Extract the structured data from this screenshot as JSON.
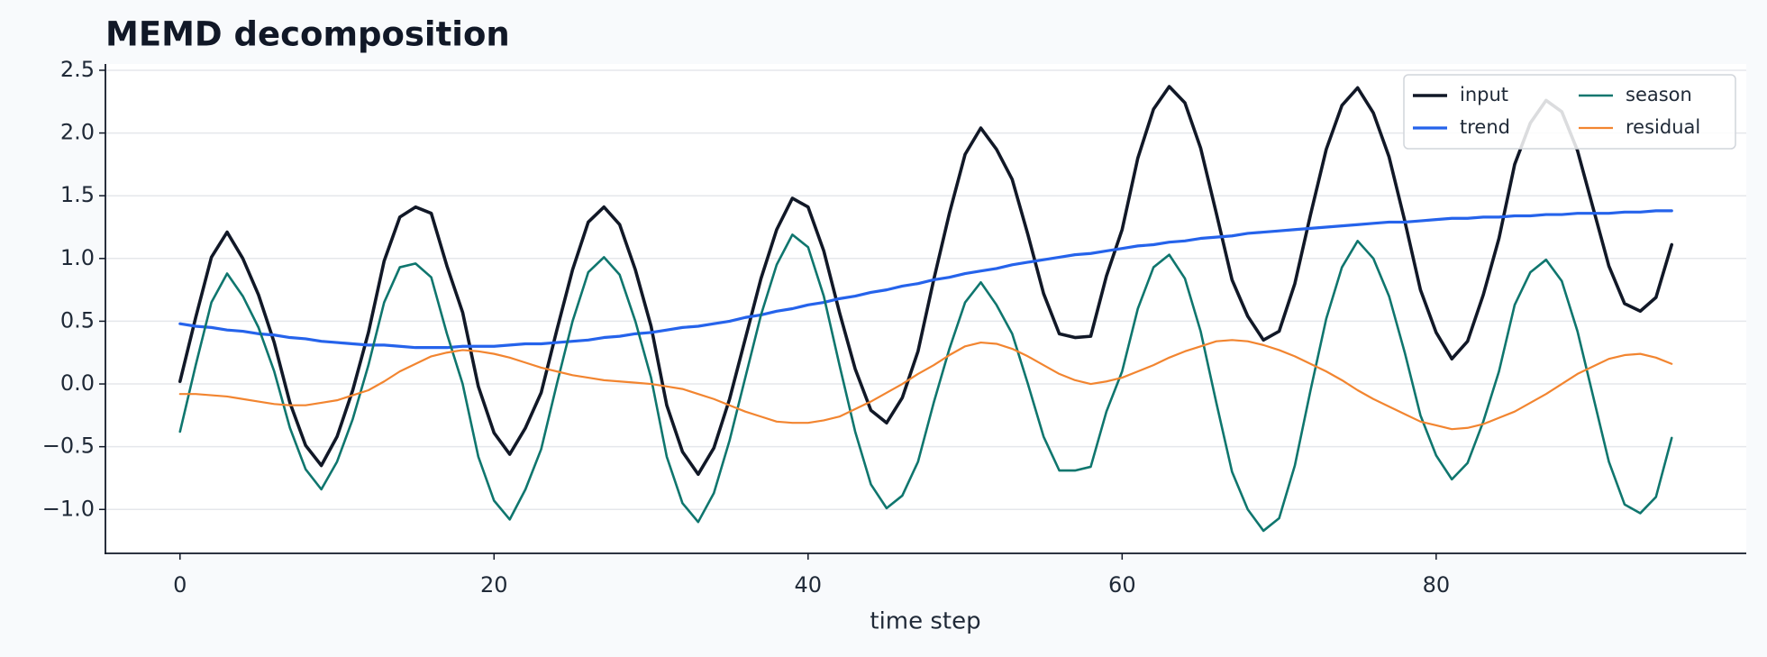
{
  "chart_data": {
    "type": "line",
    "title": "MEMD decomposition",
    "xlabel": "time step",
    "x": [
      0,
      1,
      2,
      3,
      4,
      5,
      6,
      7,
      8,
      9,
      10,
      11,
      12,
      13,
      14,
      15,
      16,
      17,
      18,
      19,
      20,
      21,
      22,
      23,
      24,
      25,
      26,
      27,
      28,
      29,
      30,
      31,
      32,
      33,
      34,
      35,
      36,
      37,
      38,
      39,
      40,
      41,
      42,
      43,
      44,
      45,
      46,
      47,
      48,
      49,
      50,
      51,
      52,
      53,
      54,
      55,
      56,
      57,
      58,
      59,
      60,
      61,
      62,
      63,
      64,
      65,
      66,
      67,
      68,
      69,
      70,
      71,
      72,
      73,
      74,
      75,
      76,
      77,
      78,
      79,
      80,
      81,
      82,
      83,
      84,
      85,
      86,
      87,
      88,
      89,
      90,
      91,
      92,
      93,
      94,
      95
    ],
    "series": [
      {
        "name": "input",
        "color": "#111827",
        "width": 3.6,
        "values": [
          0.02,
          0.53,
          1.01,
          1.21,
          1.0,
          0.71,
          0.33,
          -0.15,
          -0.49,
          -0.65,
          -0.42,
          -0.05,
          0.41,
          0.98,
          1.33,
          1.41,
          1.36,
          0.94,
          0.57,
          -0.02,
          -0.39,
          -0.56,
          -0.35,
          -0.07,
          0.43,
          0.91,
          1.29,
          1.41,
          1.27,
          0.91,
          0.46,
          -0.17,
          -0.54,
          -0.72,
          -0.51,
          -0.12,
          0.36,
          0.84,
          1.23,
          1.48,
          1.41,
          1.06,
          0.57,
          0.12,
          -0.21,
          -0.31,
          -0.11,
          0.26,
          0.83,
          1.36,
          1.83,
          2.04,
          1.87,
          1.63,
          1.19,
          0.72,
          0.4,
          0.37,
          0.38,
          0.86,
          1.23,
          1.8,
          2.19,
          2.37,
          2.24,
          1.88,
          1.36,
          0.83,
          0.54,
          0.35,
          0.42,
          0.8,
          1.35,
          1.87,
          2.22,
          2.36,
          2.16,
          1.81,
          1.3,
          0.75,
          0.41,
          0.2,
          0.34,
          0.71,
          1.16,
          1.75,
          2.08,
          2.26,
          2.17,
          1.86,
          1.4,
          0.94,
          0.64,
          0.58,
          0.69,
          1.11
        ]
      },
      {
        "name": "trend",
        "color": "#2563eb",
        "width": 3.2,
        "values": [
          0.48,
          0.46,
          0.45,
          0.43,
          0.42,
          0.4,
          0.39,
          0.37,
          0.36,
          0.34,
          0.33,
          0.32,
          0.31,
          0.31,
          0.3,
          0.29,
          0.29,
          0.29,
          0.3,
          0.3,
          0.3,
          0.31,
          0.32,
          0.32,
          0.33,
          0.34,
          0.35,
          0.37,
          0.38,
          0.4,
          0.41,
          0.43,
          0.45,
          0.46,
          0.48,
          0.5,
          0.53,
          0.55,
          0.58,
          0.6,
          0.63,
          0.65,
          0.68,
          0.7,
          0.73,
          0.75,
          0.78,
          0.8,
          0.83,
          0.85,
          0.88,
          0.9,
          0.92,
          0.95,
          0.97,
          0.99,
          1.01,
          1.03,
          1.04,
          1.06,
          1.08,
          1.1,
          1.11,
          1.13,
          1.14,
          1.16,
          1.17,
          1.18,
          1.2,
          1.21,
          1.22,
          1.23,
          1.24,
          1.25,
          1.26,
          1.27,
          1.28,
          1.29,
          1.29,
          1.3,
          1.31,
          1.32,
          1.32,
          1.33,
          1.33,
          1.34,
          1.34,
          1.35,
          1.35,
          1.36,
          1.36,
          1.36,
          1.37,
          1.37,
          1.38,
          1.38
        ]
      },
      {
        "name": "season",
        "color": "#0f766e",
        "width": 2.6,
        "values": [
          -0.38,
          0.15,
          0.65,
          0.88,
          0.7,
          0.45,
          0.1,
          -0.35,
          -0.68,
          -0.84,
          -0.62,
          -0.28,
          0.15,
          0.65,
          0.93,
          0.96,
          0.85,
          0.4,
          0,
          -0.58,
          -0.93,
          -1.08,
          -0.84,
          -0.52,
          0,
          0.5,
          0.89,
          1.01,
          0.87,
          0.5,
          0.05,
          -0.58,
          -0.95,
          -1.1,
          -0.87,
          -0.45,
          0.05,
          0.55,
          0.95,
          1.19,
          1.09,
          0.7,
          0.15,
          -0.38,
          -0.8,
          -0.99,
          -0.89,
          -0.62,
          -0.15,
          0.28,
          0.65,
          0.81,
          0.63,
          0.4,
          0,
          -0.42,
          -0.69,
          -0.69,
          -0.66,
          -0.22,
          0.1,
          0.6,
          0.93,
          1.03,
          0.84,
          0.42,
          -0.15,
          -0.7,
          -1.0,
          -1.17,
          -1.07,
          -0.65,
          -0.05,
          0.52,
          0.93,
          1.14,
          1.0,
          0.7,
          0.25,
          -0.25,
          -0.57,
          -0.76,
          -0.63,
          -0.3,
          0.1,
          0.63,
          0.89,
          0.99,
          0.82,
          0.42,
          -0.1,
          -0.62,
          -0.96,
          -1.03,
          -0.9,
          -0.43
        ]
      },
      {
        "name": "residual",
        "color": "#f28530",
        "width": 2.2,
        "values": [
          -0.08,
          -0.08,
          -0.09,
          -0.1,
          -0.12,
          -0.14,
          -0.16,
          -0.17,
          -0.17,
          -0.15,
          -0.13,
          -0.09,
          -0.05,
          0.02,
          0.1,
          0.16,
          0.22,
          0.25,
          0.27,
          0.26,
          0.24,
          0.21,
          0.17,
          0.13,
          0.1,
          0.07,
          0.05,
          0.03,
          0.02,
          0.01,
          0,
          -0.02,
          -0.04,
          -0.08,
          -0.12,
          -0.17,
          -0.22,
          -0.26,
          -0.3,
          -0.31,
          -0.31,
          -0.29,
          -0.26,
          -0.2,
          -0.14,
          -0.07,
          0,
          0.08,
          0.15,
          0.23,
          0.3,
          0.33,
          0.32,
          0.28,
          0.22,
          0.15,
          0.08,
          0.03,
          0,
          0.02,
          0.05,
          0.1,
          0.15,
          0.21,
          0.26,
          0.3,
          0.34,
          0.35,
          0.34,
          0.31,
          0.27,
          0.22,
          0.16,
          0.1,
          0.03,
          -0.05,
          -0.12,
          -0.18,
          -0.24,
          -0.3,
          -0.33,
          -0.36,
          -0.35,
          -0.32,
          -0.27,
          -0.22,
          -0.15,
          -0.08,
          0,
          0.08,
          0.14,
          0.2,
          0.23,
          0.24,
          0.21,
          0.16
        ]
      }
    ],
    "xlim": [
      -4.75,
      99.75
    ],
    "xticks": [
      0,
      20,
      40,
      60,
      80
    ],
    "ylim": [
      -1.35,
      2.55
    ],
    "yticks": [
      {
        "value": -1.0,
        "label": "−1.0"
      },
      {
        "value": -0.5,
        "label": "−0.5"
      },
      {
        "value": 0,
        "label": "0.0"
      },
      0.5,
      {
        "value": 1.0,
        "label": "1.0"
      },
      1.5,
      {
        "value": 2.0,
        "label": "2.0"
      },
      2.5
    ],
    "grid": "y",
    "legend": "upper right"
  }
}
